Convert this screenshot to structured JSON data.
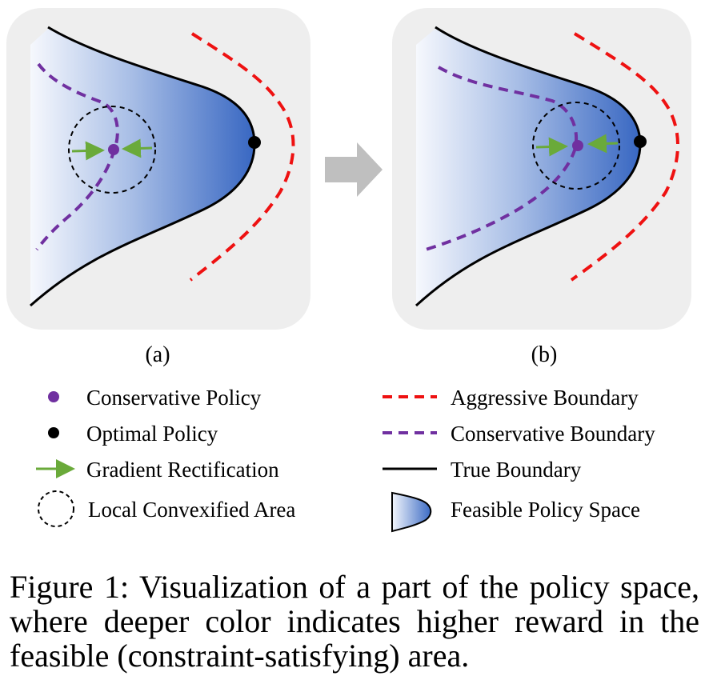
{
  "panels": [
    {
      "label": "(a)"
    },
    {
      "label": "(b)"
    }
  ],
  "legend": {
    "left": [
      {
        "icon": "conservative-policy-dot-icon",
        "label": "Conservative Policy"
      },
      {
        "icon": "optimal-policy-dot-icon",
        "label": "Optimal Policy"
      },
      {
        "icon": "gradient-arrow-icon",
        "label": "Gradient Rectification"
      },
      {
        "icon": "dashed-circle-icon",
        "label": "Local Convexified Area"
      }
    ],
    "right": [
      {
        "icon": "red-dashed-line-icon",
        "label": "Aggressive Boundary"
      },
      {
        "icon": "purple-dashed-line-icon",
        "label": "Conservative Boundary"
      },
      {
        "icon": "black-solid-line-icon",
        "label": "True Boundary"
      },
      {
        "icon": "feasible-space-swatch-icon",
        "label": "Feasible Policy Space"
      }
    ]
  },
  "caption": "Figure 1:  Visualization of a part of the policy space, where deeper color indicates higher reward in the feasible (constraint-satisfying) area.",
  "colors": {
    "panel_bg": "#eeeeee",
    "gradient_light": "#ffffff",
    "gradient_dark": "#3a6cc4",
    "aggressive": "#ee1111",
    "conservative": "#7030a0",
    "gradient_arrow": "#6aaa3a",
    "optimal": "#000000"
  }
}
